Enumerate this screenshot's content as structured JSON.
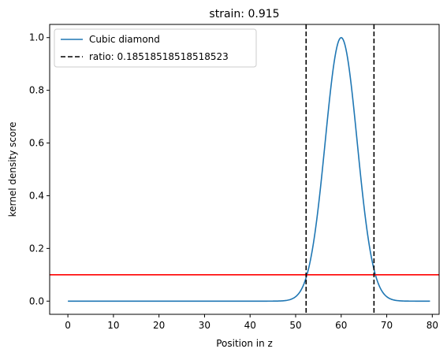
{
  "chart_data": {
    "type": "line",
    "title": "strain: 0.915",
    "xlabel": "Position in z",
    "ylabel": "kernel density score",
    "xlim": [
      -4,
      81.5
    ],
    "ylim": [
      -0.05,
      1.05
    ],
    "xticks": [
      0,
      10,
      20,
      30,
      40,
      50,
      60,
      70,
      80
    ],
    "yticks": [
      0.0,
      0.2,
      0.4,
      0.6,
      0.8,
      1.0
    ],
    "xtick_labels": [
      "0",
      "10",
      "20",
      "30",
      "40",
      "50",
      "60",
      "70",
      "80"
    ],
    "ytick_labels": [
      "0.0",
      "0.2",
      "0.4",
      "0.6",
      "0.8",
      "1.0"
    ],
    "grid": false,
    "legend_position": "upper-left",
    "series": [
      {
        "name": "Cubic diamond",
        "color": "#1f77b4",
        "style": "solid",
        "x_range": [
          0,
          79.5
        ],
        "peak_x": 60,
        "peak_y": 1.0,
        "width_sigma": 3.5
      }
    ],
    "vlines": [
      {
        "x": 52.3,
        "color": "#000000",
        "style": "dashed",
        "legend": "ratio: 0.18518518518518523"
      },
      {
        "x": 67.2,
        "color": "#000000",
        "style": "dashed"
      }
    ],
    "hlines": [
      {
        "y": 0.1,
        "color": "#ff0000",
        "style": "solid"
      }
    ]
  }
}
